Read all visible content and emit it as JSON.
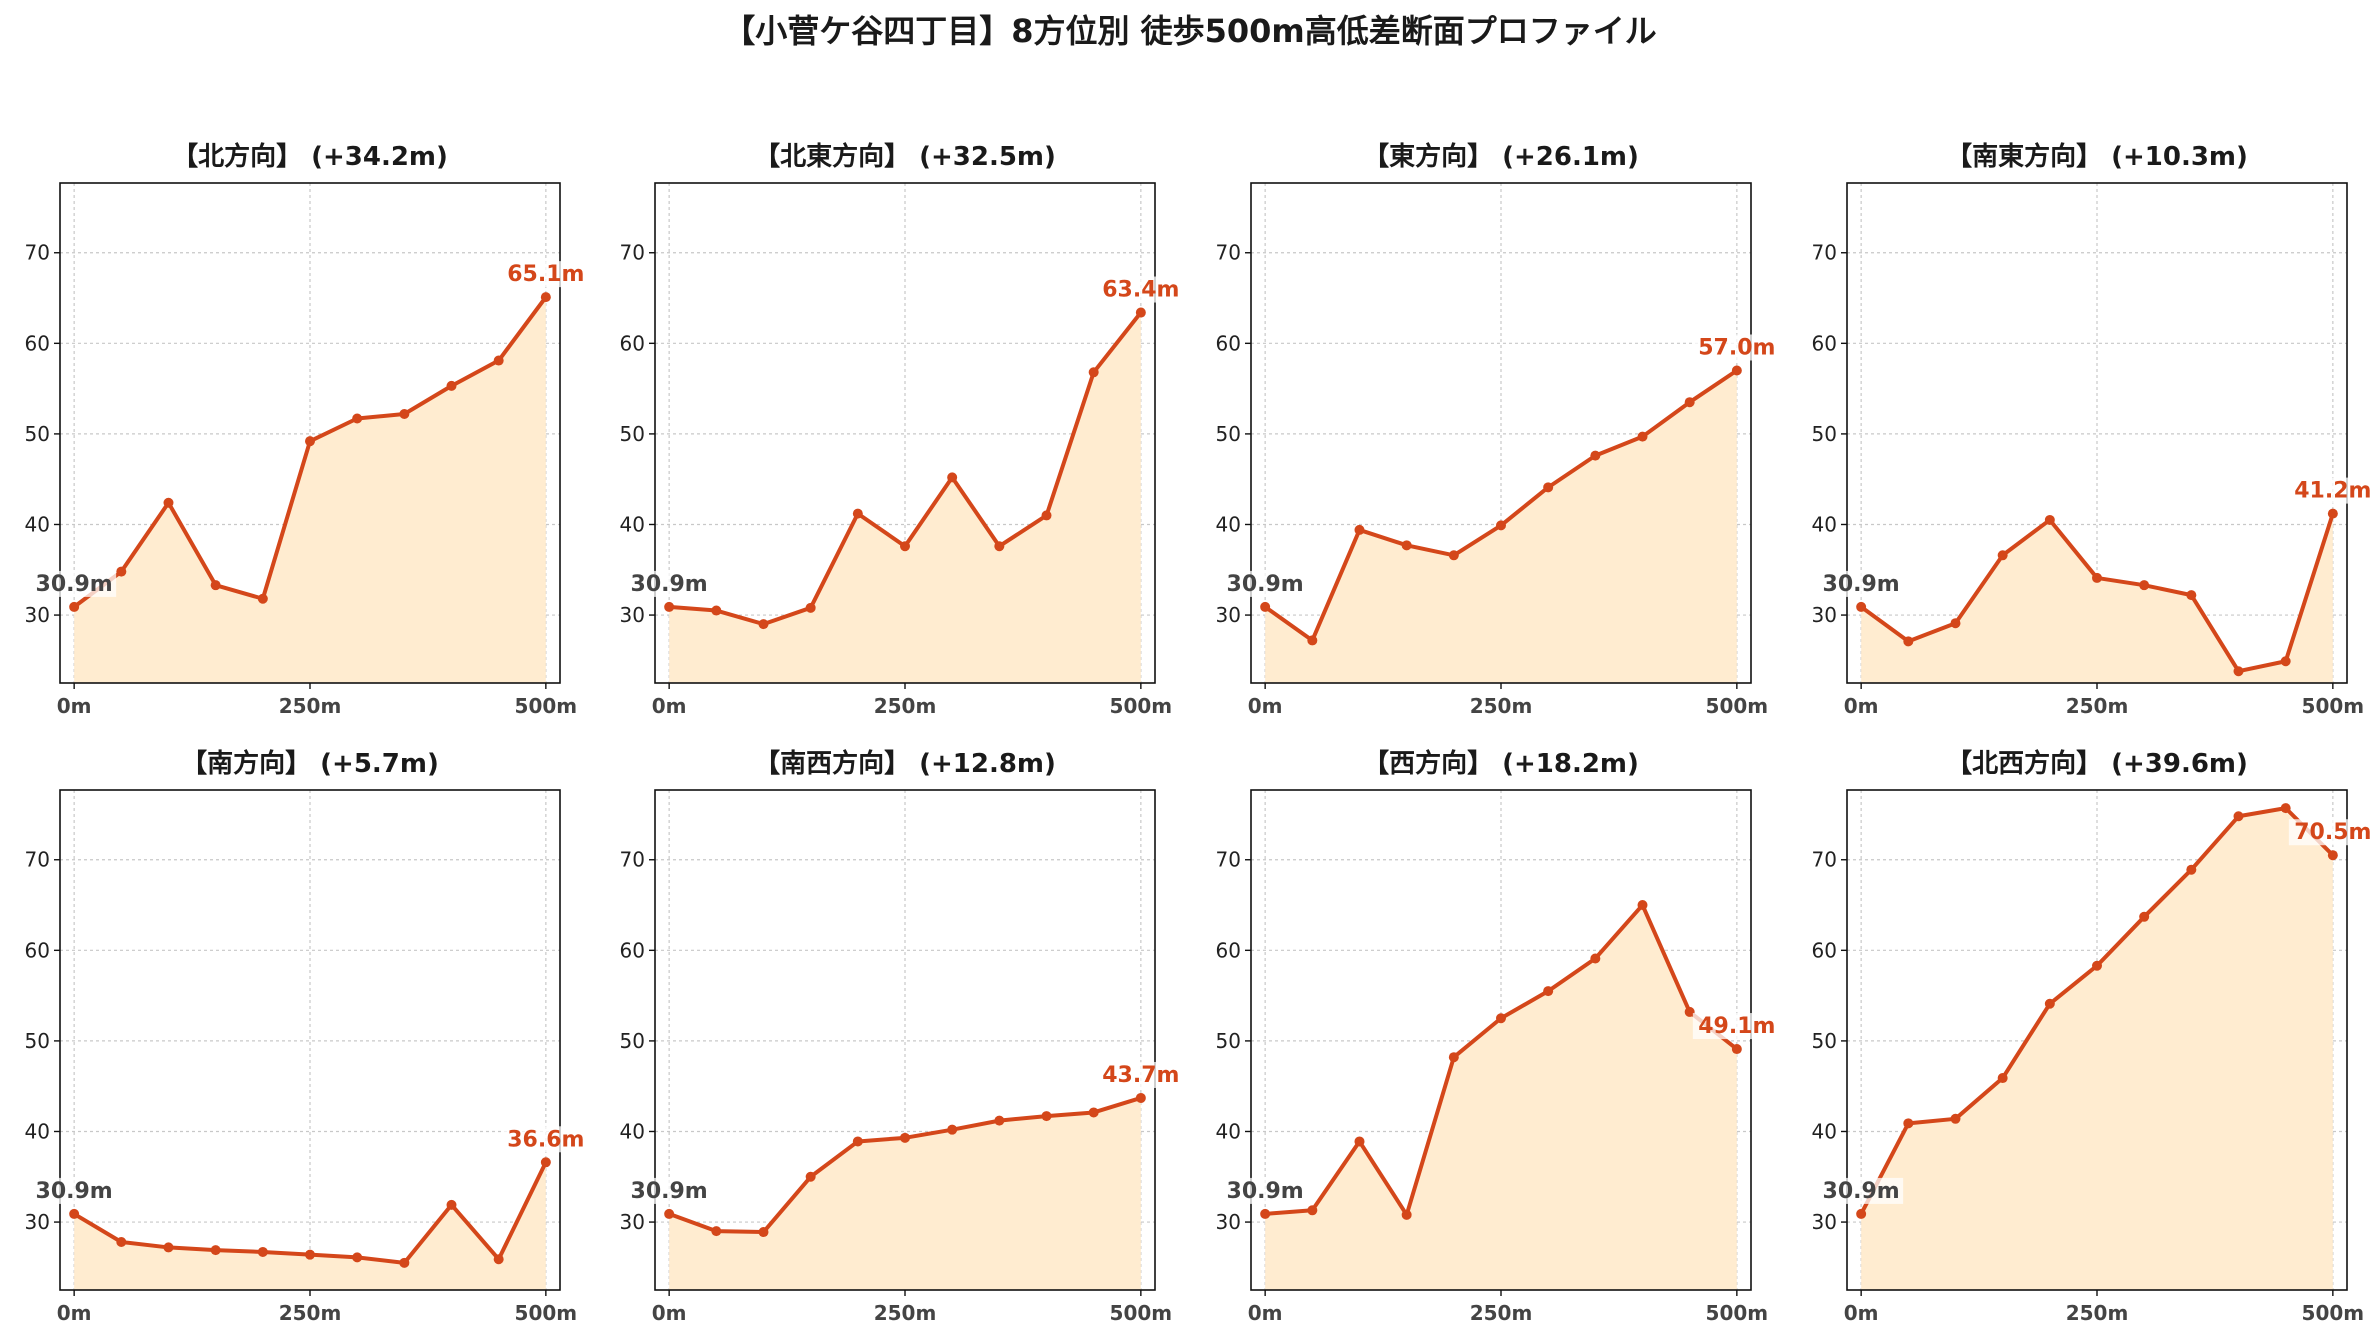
{
  "title": "【小菅ケ谷四丁目】8方位別 徒歩500m高低差断面プロファイル",
  "colors": {
    "line": "#d4471a",
    "fill": "#ffecd0",
    "grid": "#c8c8c8",
    "start_label": "#444444"
  },
  "chart_data": [
    {
      "type": "area",
      "title": "【北方向】 (+34.2m)",
      "x": [
        0,
        50,
        100,
        150,
        200,
        250,
        300,
        350,
        400,
        450,
        500
      ],
      "values": [
        30.9,
        34.8,
        42.4,
        33.3,
        31.8,
        49.2,
        51.7,
        52.2,
        55.3,
        58.1,
        65.1
      ],
      "start_label": "30.9m",
      "end_label": "65.1m",
      "ylim": [
        22.5,
        77.7
      ],
      "yticks": [
        30,
        40,
        50,
        60,
        70
      ],
      "xticks": [
        0,
        250,
        500
      ],
      "xtick_labels": [
        "0m",
        "250m",
        "500m"
      ],
      "grid": true
    },
    {
      "type": "area",
      "title": "【北東方向】 (+32.5m)",
      "x": [
        0,
        50,
        100,
        150,
        200,
        250,
        300,
        350,
        400,
        450,
        500
      ],
      "values": [
        30.9,
        30.5,
        29.0,
        30.8,
        41.2,
        37.6,
        45.2,
        37.6,
        41.0,
        56.8,
        63.4
      ],
      "start_label": "30.9m",
      "end_label": "63.4m",
      "ylim": [
        22.5,
        77.7
      ],
      "yticks": [
        30,
        40,
        50,
        60,
        70
      ],
      "xticks": [
        0,
        250,
        500
      ],
      "xtick_labels": [
        "0m",
        "250m",
        "500m"
      ],
      "grid": true
    },
    {
      "type": "area",
      "title": "【東方向】 (+26.1m)",
      "x": [
        0,
        50,
        100,
        150,
        200,
        250,
        300,
        350,
        400,
        450,
        500
      ],
      "values": [
        30.9,
        27.2,
        39.4,
        37.7,
        36.6,
        39.9,
        44.1,
        47.6,
        49.7,
        53.5,
        57.0
      ],
      "start_label": "30.9m",
      "end_label": "57.0m",
      "ylim": [
        22.5,
        77.7
      ],
      "yticks": [
        30,
        40,
        50,
        60,
        70
      ],
      "xticks": [
        0,
        250,
        500
      ],
      "xtick_labels": [
        "0m",
        "250m",
        "500m"
      ],
      "grid": true
    },
    {
      "type": "area",
      "title": "【南東方向】 (+10.3m)",
      "x": [
        0,
        50,
        100,
        150,
        200,
        250,
        300,
        350,
        400,
        450,
        500
      ],
      "values": [
        30.9,
        27.1,
        29.1,
        36.6,
        40.5,
        34.1,
        33.3,
        32.2,
        23.8,
        24.9,
        41.2
      ],
      "start_label": "30.9m",
      "end_label": "41.2m",
      "ylim": [
        22.5,
        77.7
      ],
      "yticks": [
        30,
        40,
        50,
        60,
        70
      ],
      "xticks": [
        0,
        250,
        500
      ],
      "xtick_labels": [
        "0m",
        "250m",
        "500m"
      ],
      "grid": true
    },
    {
      "type": "area",
      "title": "【南方向】 (+5.7m)",
      "x": [
        0,
        50,
        100,
        150,
        200,
        250,
        300,
        350,
        400,
        450,
        500
      ],
      "values": [
        30.9,
        27.8,
        27.2,
        26.9,
        26.7,
        26.4,
        26.1,
        25.5,
        31.9,
        25.9,
        36.6
      ],
      "start_label": "30.9m",
      "end_label": "36.6m",
      "ylim": [
        22.5,
        77.7
      ],
      "yticks": [
        30,
        40,
        50,
        60,
        70
      ],
      "xticks": [
        0,
        250,
        500
      ],
      "xtick_labels": [
        "0m",
        "250m",
        "500m"
      ],
      "grid": true
    },
    {
      "type": "area",
      "title": "【南西方向】 (+12.8m)",
      "x": [
        0,
        50,
        100,
        150,
        200,
        250,
        300,
        350,
        400,
        450,
        500
      ],
      "values": [
        30.9,
        29.0,
        28.9,
        35.0,
        38.9,
        39.3,
        40.2,
        41.2,
        41.7,
        42.1,
        43.7
      ],
      "start_label": "30.9m",
      "end_label": "43.7m",
      "ylim": [
        22.5,
        77.7
      ],
      "yticks": [
        30,
        40,
        50,
        60,
        70
      ],
      "xticks": [
        0,
        250,
        500
      ],
      "xtick_labels": [
        "0m",
        "250m",
        "500m"
      ],
      "grid": true
    },
    {
      "type": "area",
      "title": "【西方向】 (+18.2m)",
      "x": [
        0,
        50,
        100,
        150,
        200,
        250,
        300,
        350,
        400,
        450,
        500
      ],
      "values": [
        30.9,
        31.3,
        38.9,
        30.8,
        48.2,
        52.5,
        55.5,
        59.1,
        65.0,
        53.2,
        49.1
      ],
      "start_label": "30.9m",
      "end_label": "49.1m",
      "ylim": [
        22.5,
        77.7
      ],
      "yticks": [
        30,
        40,
        50,
        60,
        70
      ],
      "xticks": [
        0,
        250,
        500
      ],
      "xtick_labels": [
        "0m",
        "250m",
        "500m"
      ],
      "grid": true
    },
    {
      "type": "area",
      "title": "【北西方向】 (+39.6m)",
      "x": [
        0,
        50,
        100,
        150,
        200,
        250,
        300,
        350,
        400,
        450,
        500
      ],
      "values": [
        30.9,
        40.9,
        41.4,
        45.9,
        54.1,
        58.3,
        63.7,
        68.9,
        74.8,
        75.7,
        70.5
      ],
      "start_label": "30.9m",
      "end_label": "70.5m",
      "ylim": [
        22.5,
        77.7
      ],
      "yticks": [
        30,
        40,
        50,
        60,
        70
      ],
      "xticks": [
        0,
        250,
        500
      ],
      "xtick_labels": [
        "0m",
        "250m",
        "500m"
      ],
      "grid": true
    }
  ]
}
